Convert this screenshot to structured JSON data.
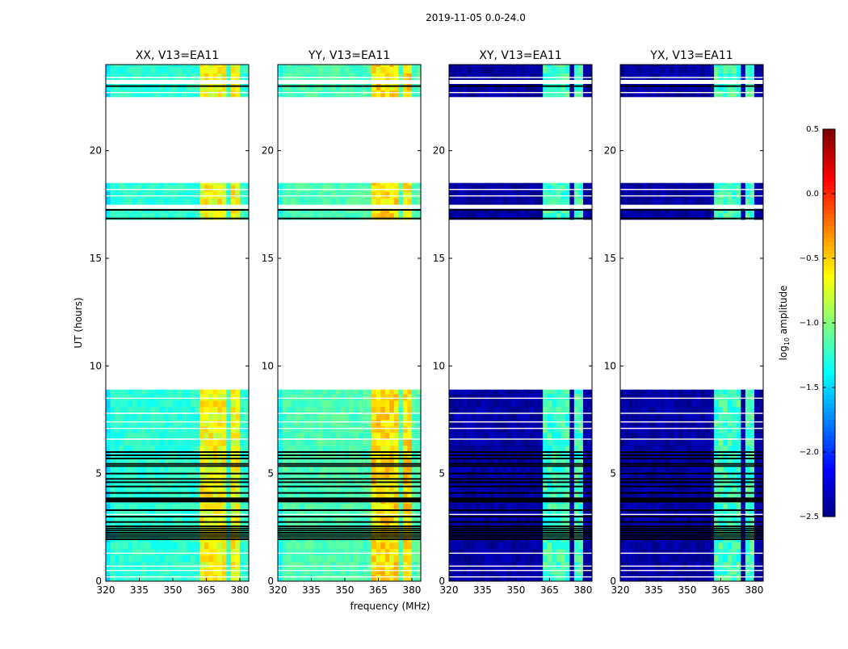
{
  "chart_data": {
    "type": "heatmap",
    "title": "2019-11-05 0.0-24.0",
    "xlabel": "frequency (MHz)",
    "ylabel": "UT (hours)",
    "xlim": [
      320,
      384
    ],
    "ylim": [
      0,
      24
    ],
    "xticks": [
      320,
      335,
      350,
      365,
      380
    ],
    "yticks": [
      0,
      5,
      10,
      15,
      20
    ],
    "colorbar": {
      "label_main": "log",
      "label_sub": "10",
      "label_rest": " amplitude",
      "colormap": "jet",
      "range": [
        -2.5,
        0.5
      ],
      "ticks": [
        "0.5",
        "0.0",
        "−0.5",
        "−1.0",
        "−1.5",
        "−2.0",
        "−2.5"
      ],
      "tick_values": [
        0.5,
        0.0,
        -0.5,
        -1.0,
        -1.5,
        -2.0,
        -2.5
      ]
    },
    "data_segments_hours": [
      [
        0,
        8.9
      ],
      [
        16.8,
        17.3
      ],
      [
        17.5,
        18.5
      ],
      [
        22.5,
        23.1
      ],
      [
        23.3,
        24
      ]
    ],
    "flagged_lines_hours": [
      1.95,
      2.05,
      2.15,
      2.25,
      2.35,
      2.45,
      2.55,
      2.75,
      3.0,
      3.3,
      3.7,
      3.75,
      3.8,
      3.85,
      4.1,
      4.4,
      4.6,
      4.75,
      5.0,
      5.35,
      5.45,
      5.7,
      5.85,
      6.0,
      16.85,
      17.25,
      23.0
    ],
    "white_lines_hours": [
      0.2,
      0.5,
      0.7,
      1.3,
      3.1,
      6.6,
      7.1,
      7.4,
      7.8,
      8.5,
      17.9,
      18.2,
      22.7,
      23.4
    ],
    "rfi_bands_mhz": [
      [
        363,
        366
      ],
      [
        367,
        370
      ],
      [
        371,
        374.5
      ],
      [
        376,
        379
      ]
    ],
    "panels": [
      {
        "title": "XX, V13=EA11",
        "base": -1.25,
        "rfi": -0.65
      },
      {
        "title": "YY, V13=EA11",
        "base": -1.15,
        "rfi": -0.55
      },
      {
        "title": "XY, V13=EA11",
        "base": -2.4,
        "rfi": -1.2
      },
      {
        "title": "YX, V13=EA11",
        "base": -2.4,
        "rfi": -1.2
      }
    ]
  }
}
